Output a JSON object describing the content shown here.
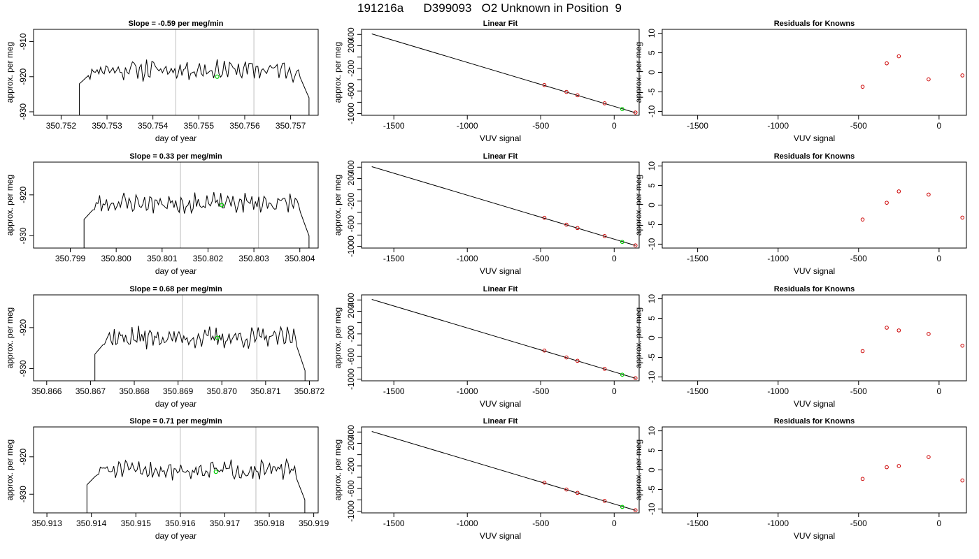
{
  "title": "191216a      D399093   O2 Unknown in Position  9",
  "colors": {
    "trace": "#000000",
    "vline": "#bebebe",
    "unknown": "#00cc00",
    "known": "#cc0000",
    "axis": "#000000"
  },
  "chart_data": [
    {
      "panel": "timeseries-1",
      "type": "line",
      "title": "Slope =  -0.59  per meg/min",
      "xlabel": "day of year",
      "ylabel": "approx. per meg",
      "xlim": [
        350.7514,
        350.7576
      ],
      "ylim": [
        -931,
        -906.5
      ],
      "xticks": [
        350.752,
        350.753,
        350.754,
        350.755,
        350.756,
        350.757
      ],
      "xtick_labels": [
        "350.752",
        "350.753",
        "350.754",
        "350.755",
        "350.756",
        "350.757"
      ],
      "yticks": [
        -930,
        -920,
        -910
      ],
      "ytick_labels": [
        "-930",
        "-920",
        "-910"
      ],
      "trace_start": 350.7524,
      "trace_end": 350.7574,
      "trace_level": -918,
      "trace_amp": 2.2,
      "trace_seed": 11,
      "vlines": [
        350.7545,
        350.7562
      ],
      "unknown_point": {
        "x": 350.7554,
        "y": -920
      }
    },
    {
      "panel": "timeseries-2",
      "type": "line",
      "title": "Slope =  0.33  per meg/min",
      "xlabel": "day of year",
      "ylabel": "approx. per meg",
      "xlim": [
        350.7982,
        350.8044
      ],
      "ylim": [
        -933,
        -912
      ],
      "xticks": [
        350.799,
        350.8,
        350.801,
        350.802,
        350.803,
        350.804
      ],
      "xtick_labels": [
        "350.799",
        "350.800",
        "350.801",
        "350.802",
        "350.803",
        "350.804"
      ],
      "yticks": [
        -930,
        -920
      ],
      "ytick_labels": [
        "-930",
        "-920"
      ],
      "trace_start": 350.7993,
      "trace_end": 350.8042,
      "trace_level": -922,
      "trace_amp": 1.8,
      "trace_seed": 23,
      "vlines": [
        350.8014,
        350.8031
      ],
      "unknown_point": {
        "x": 350.8023,
        "y": -922.5
      }
    },
    {
      "panel": "timeseries-3",
      "type": "line",
      "title": "Slope =  0.68  per meg/min",
      "xlabel": "day of year",
      "ylabel": "approx. per meg",
      "xlim": [
        350.8657,
        350.8722
      ],
      "ylim": [
        -933,
        -912
      ],
      "xticks": [
        350.866,
        350.867,
        350.868,
        350.869,
        350.87,
        350.871,
        350.872
      ],
      "xtick_labels": [
        "350.866",
        "350.867",
        "350.868",
        "350.869",
        "350.870",
        "350.871",
        "350.872"
      ],
      "yticks": [
        -930,
        -920
      ],
      "ytick_labels": [
        "-930",
        "-920"
      ],
      "trace_start": 350.8671,
      "trace_end": 350.8719,
      "trace_level": -922.5,
      "trace_amp": 1.9,
      "trace_seed": 37,
      "vlines": [
        350.8691,
        350.8708
      ],
      "unknown_point": {
        "x": 350.8699,
        "y": -922.5
      }
    },
    {
      "panel": "timeseries-4",
      "type": "line",
      "title": "Slope =  0.71  per meg/min",
      "xlabel": "day of year",
      "ylabel": "approx. per meg",
      "xlim": [
        350.9127,
        350.9191
      ],
      "ylim": [
        -935,
        -912
      ],
      "xticks": [
        350.913,
        350.914,
        350.915,
        350.916,
        350.917,
        350.918,
        350.919
      ],
      "xtick_labels": [
        "350.913",
        "350.914",
        "350.915",
        "350.916",
        "350.917",
        "350.918",
        "350.919"
      ],
      "yticks": [
        -930,
        -920
      ],
      "ytick_labels": [
        "-930",
        "-920"
      ],
      "trace_start": 350.9139,
      "trace_end": 350.9188,
      "trace_level": -923.5,
      "trace_amp": 1.8,
      "trace_seed": 51,
      "vlines": [
        350.916,
        350.9177
      ],
      "unknown_point": {
        "x": 350.9168,
        "y": -924
      }
    },
    {
      "panel": "fit-1",
      "type": "scatter",
      "title": "Linear Fit",
      "xlabel": "VUV signal",
      "ylabel": "approx. per meg",
      "xlim": [
        -1720,
        170
      ],
      "ylim": [
        -1030,
        490
      ],
      "xticks": [
        -1500,
        -1000,
        -500,
        0
      ],
      "xtick_labels": [
        "-1500",
        "-1000",
        "-500",
        "0"
      ],
      "yticks": [
        -1000,
        -800,
        -600,
        -400,
        -200,
        0,
        200,
        400
      ],
      "ytick_labels": [
        "-1000",
        "",
        "-600",
        "",
        "-200",
        "",
        "200",
        "400"
      ],
      "fit_line": [
        [
          -1650,
          410
        ],
        [
          145,
          -985
        ]
      ],
      "knowns": [
        [
          -475,
          -495
        ],
        [
          -325,
          -617
        ],
        [
          -250,
          -676
        ],
        [
          -65,
          -818
        ],
        [
          145,
          -981
        ]
      ],
      "unknown": [
        55,
        -920
      ]
    },
    {
      "panel": "fit-2",
      "type": "scatter",
      "title": "Linear Fit",
      "xlabel": "VUV signal",
      "ylabel": "approx. per meg",
      "xlim": [
        -1720,
        170
      ],
      "ylim": [
        -1030,
        490
      ],
      "xticks": [
        -1500,
        -1000,
        -500,
        0
      ],
      "xtick_labels": [
        "-1500",
        "-1000",
        "-500",
        "0"
      ],
      "yticks": [
        -1000,
        -800,
        -600,
        -400,
        -200,
        0,
        200,
        400
      ],
      "ytick_labels": [
        "-1000",
        "",
        "-600",
        "",
        "-200",
        "",
        "200",
        "400"
      ],
      "fit_line": [
        [
          -1650,
          410
        ],
        [
          145,
          -985
        ]
      ],
      "knowns": [
        [
          -475,
          -495
        ],
        [
          -325,
          -617
        ],
        [
          -250,
          -676
        ],
        [
          -65,
          -818
        ],
        [
          145,
          -983
        ]
      ],
      "unknown": [
        55,
        -922
      ]
    },
    {
      "panel": "fit-3",
      "type": "scatter",
      "title": "Linear Fit",
      "xlabel": "VUV signal",
      "ylabel": "approx. per meg",
      "xlim": [
        -1720,
        170
      ],
      "ylim": [
        -1030,
        490
      ],
      "xticks": [
        -1500,
        -1000,
        -500,
        0
      ],
      "xtick_labels": [
        "-1500",
        "-1000",
        "-500",
        "0"
      ],
      "yticks": [
        -1000,
        -800,
        -600,
        -400,
        -200,
        0,
        200,
        400
      ],
      "ytick_labels": [
        "-1000",
        "",
        "-600",
        "",
        "-200",
        "",
        "200",
        "400"
      ],
      "fit_line": [
        [
          -1650,
          410
        ],
        [
          145,
          -985
        ]
      ],
      "knowns": [
        [
          -475,
          -495
        ],
        [
          -325,
          -617
        ],
        [
          -250,
          -676
        ],
        [
          -65,
          -818
        ],
        [
          145,
          -983
        ]
      ],
      "unknown": [
        55,
        -922
      ]
    },
    {
      "panel": "fit-4",
      "type": "scatter",
      "title": "Linear Fit",
      "xlabel": "VUV signal",
      "ylabel": "approx. per meg",
      "xlim": [
        -1720,
        170
      ],
      "ylim": [
        -1030,
        490
      ],
      "xticks": [
        -1500,
        -1000,
        -500,
        0
      ],
      "xtick_labels": [
        "-1500",
        "-1000",
        "-500",
        "0"
      ],
      "yticks": [
        -1000,
        -800,
        -600,
        -400,
        -200,
        0,
        200,
        400
      ],
      "ytick_labels": [
        "-1000",
        "",
        "-600",
        "",
        "-200",
        "",
        "200",
        "400"
      ],
      "fit_line": [
        [
          -1650,
          410
        ],
        [
          145,
          -985
        ]
      ],
      "knowns": [
        [
          -475,
          -495
        ],
        [
          -325,
          -617
        ],
        [
          -250,
          -676
        ],
        [
          -65,
          -818
        ],
        [
          145,
          -983
        ]
      ],
      "unknown": [
        55,
        -924
      ]
    },
    {
      "panel": "residuals-1",
      "type": "scatter",
      "title": "Residuals for Knowns",
      "xlabel": "VUV signal",
      "ylabel": "approx. per meg",
      "xlim": [
        -1720,
        170
      ],
      "ylim": [
        -11,
        11
      ],
      "xticks": [
        -1500,
        -1000,
        -500,
        0
      ],
      "xtick_labels": [
        "-1500",
        "-1000",
        "-500",
        "0"
      ],
      "yticks": [
        -10,
        -5,
        0,
        5,
        10
      ],
      "ytick_labels": [
        "-10",
        "-5",
        "0",
        "5",
        "10"
      ],
      "points": [
        [
          -475,
          -3.7
        ],
        [
          -325,
          2.3
        ],
        [
          -250,
          4.1
        ],
        [
          -65,
          -1.8
        ],
        [
          145,
          -0.8
        ]
      ]
    },
    {
      "panel": "residuals-2",
      "type": "scatter",
      "title": "Residuals for Knowns",
      "xlabel": "VUV signal",
      "ylabel": "approx. per meg",
      "xlim": [
        -1720,
        170
      ],
      "ylim": [
        -11,
        11
      ],
      "xticks": [
        -1500,
        -1000,
        -500,
        0
      ],
      "xtick_labels": [
        "-1500",
        "-1000",
        "-500",
        "0"
      ],
      "yticks": [
        -10,
        -5,
        0,
        5,
        10
      ],
      "ytick_labels": [
        "-10",
        "-5",
        "0",
        "5",
        "10"
      ],
      "points": [
        [
          -475,
          -3.7
        ],
        [
          -325,
          0.6
        ],
        [
          -250,
          3.5
        ],
        [
          -65,
          2.7
        ],
        [
          145,
          -3.2
        ]
      ]
    },
    {
      "panel": "residuals-3",
      "type": "scatter",
      "title": "Residuals for Knowns",
      "xlabel": "VUV signal",
      "ylabel": "approx. per meg",
      "xlim": [
        -1720,
        170
      ],
      "ylim": [
        -11,
        11
      ],
      "xticks": [
        -1500,
        -1000,
        -500,
        0
      ],
      "xtick_labels": [
        "-1500",
        "-1000",
        "-500",
        "0"
      ],
      "yticks": [
        -10,
        -5,
        0,
        5,
        10
      ],
      "ytick_labels": [
        "-10",
        "-5",
        "0",
        "5",
        "10"
      ],
      "points": [
        [
          -475,
          -3.4
        ],
        [
          -325,
          2.6
        ],
        [
          -250,
          1.9
        ],
        [
          -65,
          1.0
        ],
        [
          145,
          -2.0
        ]
      ]
    },
    {
      "panel": "residuals-4",
      "type": "scatter",
      "title": "Residuals for Knowns",
      "xlabel": "VUV signal",
      "ylabel": "approx. per meg",
      "xlim": [
        -1720,
        170
      ],
      "ylim": [
        -11,
        11
      ],
      "xticks": [
        -1500,
        -1000,
        -500,
        0
      ],
      "xtick_labels": [
        "-1500",
        "-1000",
        "-500",
        "0"
      ],
      "yticks": [
        -10,
        -5,
        0,
        5,
        10
      ],
      "ytick_labels": [
        "-10",
        "-5",
        "0",
        "5",
        "10"
      ],
      "points": [
        [
          -475,
          -2.3
        ],
        [
          -325,
          0.7
        ],
        [
          -250,
          1.0
        ],
        [
          -65,
          3.3
        ],
        [
          145,
          -2.7
        ]
      ]
    }
  ]
}
